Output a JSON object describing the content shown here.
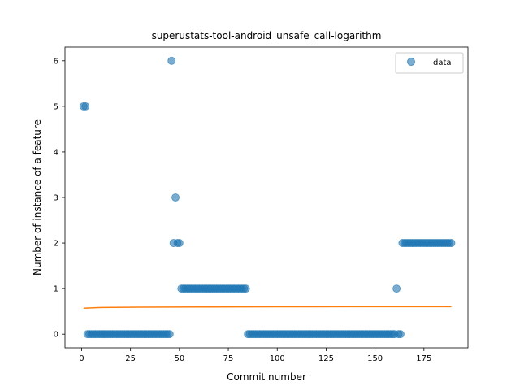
{
  "chart_data": {
    "type": "scatter",
    "title": "superustats-tool-android_unsafe_call-logarithm",
    "xlabel": "Commit number",
    "ylabel": "Number of instance of a feature",
    "xlim": [
      -8.5,
      197.5
    ],
    "ylim": [
      -0.3,
      6.3
    ],
    "xticks": [
      0,
      25,
      50,
      75,
      100,
      125,
      150,
      175
    ],
    "yticks": [
      0,
      1,
      2,
      3,
      4,
      5,
      6
    ],
    "grid": false,
    "legend": {
      "position": "top-right",
      "entries": [
        "data"
      ]
    },
    "series": [
      {
        "name": "data",
        "kind": "scatter",
        "color": "#1f77b4",
        "alpha": 0.6,
        "runs": [
          {
            "from": 1,
            "to": 2,
            "y": 5
          },
          {
            "from": 3,
            "to": 45,
            "y": 0
          },
          {
            "from": 46,
            "to": 46,
            "y": 6
          },
          {
            "from": 47,
            "to": 47,
            "y": 2
          },
          {
            "from": 48,
            "to": 48,
            "y": 3
          },
          {
            "from": 49,
            "to": 50,
            "y": 2
          },
          {
            "from": 51,
            "to": 84,
            "y": 1
          },
          {
            "from": 85,
            "to": 160,
            "y": 0
          },
          {
            "from": 161,
            "to": 161,
            "y": 1
          },
          {
            "from": 162,
            "to": 163,
            "y": 0
          },
          {
            "from": 164,
            "to": 189,
            "y": 2
          }
        ]
      },
      {
        "kind": "line",
        "color": "#ff7f0e",
        "x": [
          1,
          10,
          30,
          60,
          100,
          140,
          189
        ],
        "y": [
          0.57,
          0.585,
          0.592,
          0.597,
          0.6,
          0.602,
          0.604
        ]
      }
    ]
  }
}
